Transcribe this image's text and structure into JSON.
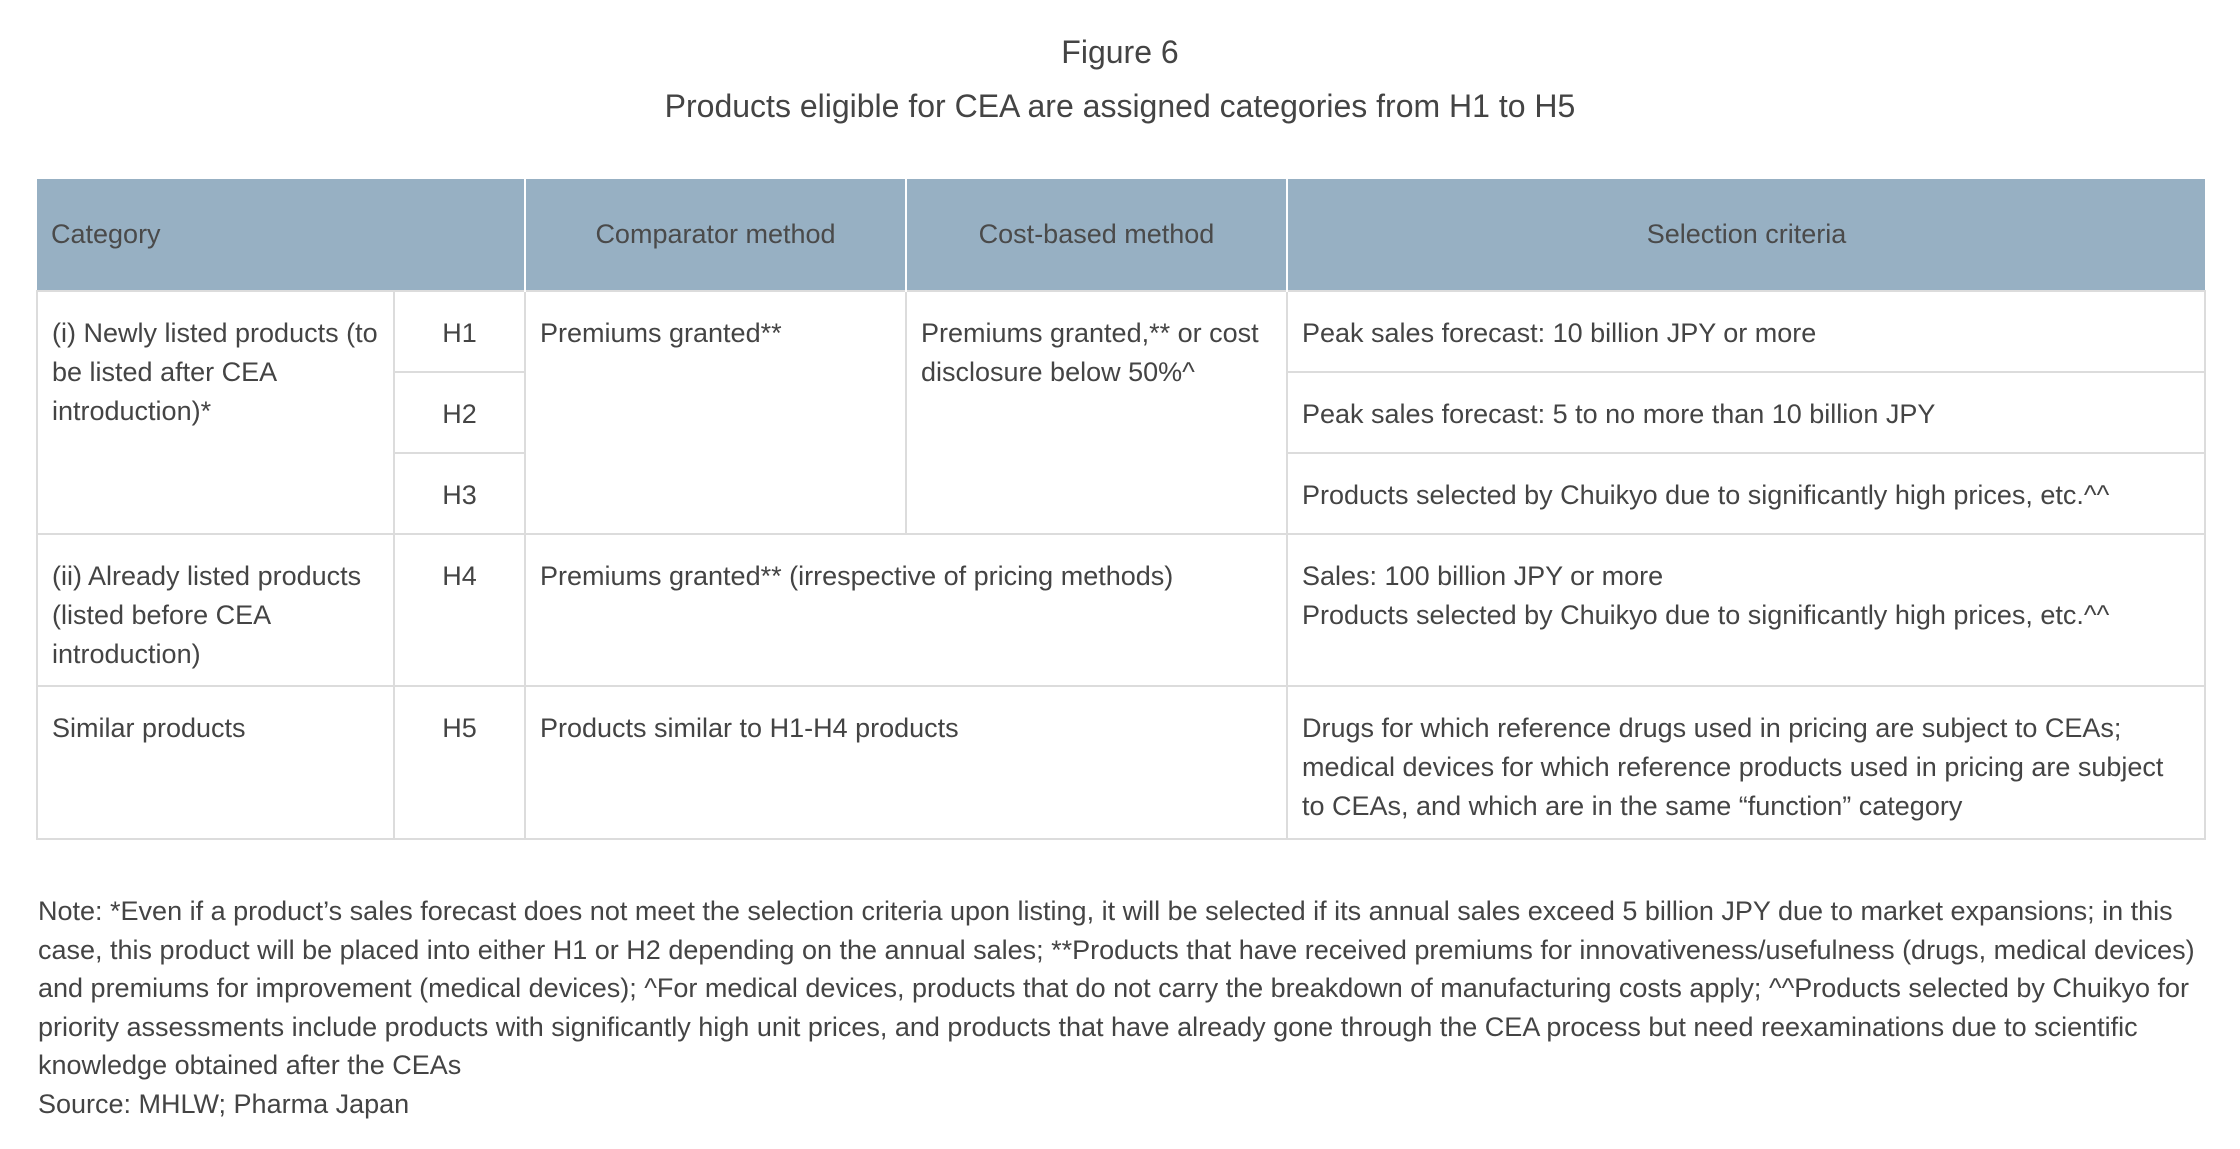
{
  "figure": {
    "number": "Figure 6",
    "title": "Products eligible for CEA are assigned categories from H1 to H5"
  },
  "table": {
    "headers": {
      "category": "Category",
      "comparator": "Comparator method",
      "cost_based": "Cost-based method",
      "criteria": "Selection criteria"
    },
    "groups": {
      "newly_listed": "(i) Newly listed products (to be listed after CEA introduction)*",
      "already_listed": "(ii) Already listed products (listed before CEA introduction)",
      "similar": "Similar products"
    },
    "codes": {
      "h1": "H1",
      "h2": "H2",
      "h3": "H3",
      "h4": "H4",
      "h5": "H5"
    },
    "comparator_new": "Premiums granted**",
    "cost_based_new": "Premiums granted,** or cost disclosure below 50%^",
    "h4_methods": "Premiums granted** (irrespective of pricing methods)",
    "h5_methods": "Products similar to H1-H4 products",
    "criteria": {
      "h1": "Peak sales forecast: 10 billion JPY or more",
      "h2": "Peak sales forecast: 5 to no more than 10 billion JPY",
      "h3": "Products selected by Chuikyo due to significantly high prices, etc.^^",
      "h4_line1": "Sales: 100 billion JPY or more",
      "h4_line2": "Products selected by Chuikyo due to significantly high prices, etc.^^",
      "h5": "Drugs for which reference drugs used in pricing are subject to CEAs; medical devices for which reference products used in pricing are subject to CEAs, and which are in the same “function” category"
    }
  },
  "notes": {
    "note": "Note: *Even if a product’s sales forecast does not meet the selection criteria upon listing, it will be selected if its annual sales exceed 5 billion JPY due to market expansions; in this case, this product will be placed into either H1 or H2 depending on the annual sales; **Products that have received premiums for innovativeness/usefulness (drugs, medical devices) and premiums for improvement (medical devices); ^For medical devices, products that do not carry the breakdown of manufacturing costs apply; ^^Products selected by Chuikyo for priority assessments include products with significantly high unit prices, and products that have already gone through the CEA process but need reexaminations due to scientific knowledge obtained after the CEAs",
    "source": "Source: MHLW; Pharma Japan"
  }
}
